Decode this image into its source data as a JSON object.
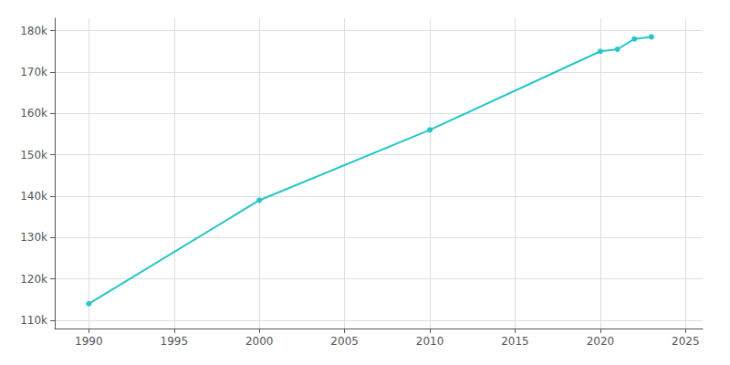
{
  "chart_data": {
    "type": "line",
    "x": [
      1990,
      2000,
      2010,
      2020,
      2021,
      2022,
      2023
    ],
    "values": [
      114000,
      139000,
      156000,
      175000,
      175500,
      178000,
      178500
    ],
    "color": "#26c6c6",
    "marker": "circle",
    "xlim": [
      1988,
      2026
    ],
    "xticks": [
      1990,
      1995,
      2000,
      2005,
      2010,
      2015,
      2020,
      2025
    ],
    "ylim": [
      108000,
      183000
    ],
    "yticks": [
      {
        "value": 110000,
        "label": "110k"
      },
      {
        "value": 120000,
        "label": "120k"
      },
      {
        "value": 130000,
        "label": "130k"
      },
      {
        "value": 140000,
        "label": "140k"
      },
      {
        "value": 150000,
        "label": "150k"
      },
      {
        "value": 160000,
        "label": "160k"
      },
      {
        "value": 170000,
        "label": "170k"
      },
      {
        "value": 180000,
        "label": "180k"
      }
    ],
    "grid": true
  }
}
